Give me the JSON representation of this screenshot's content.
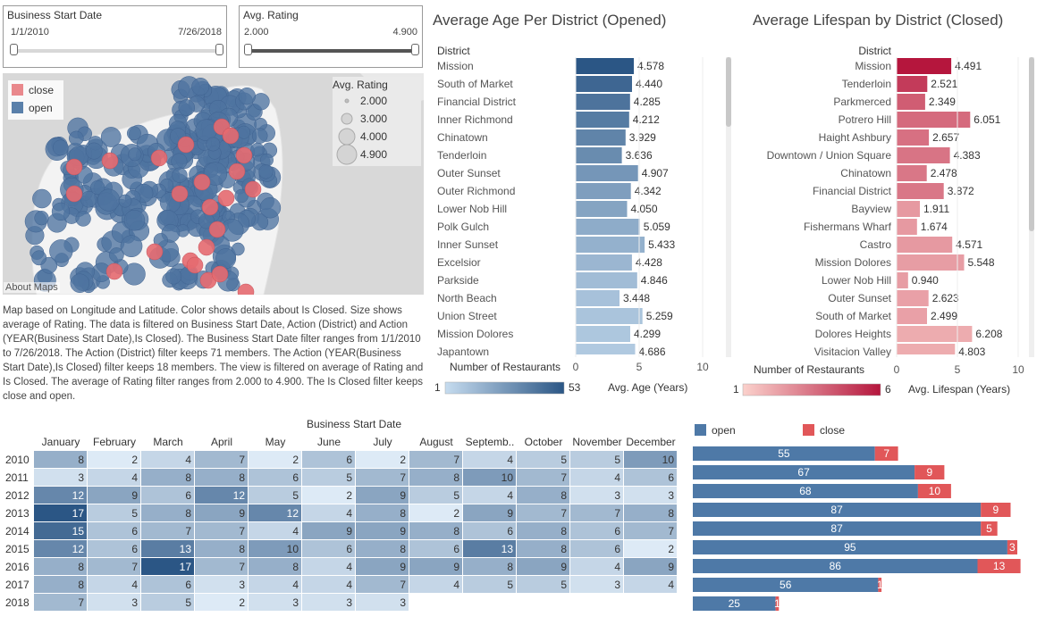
{
  "filters": {
    "start_date": {
      "title": "Business Start Date",
      "min": "1/1/2010",
      "max": "7/26/2018"
    },
    "rating": {
      "title": "Avg. Rating",
      "min": "2.000",
      "max": "4.900"
    }
  },
  "map": {
    "legend_color": [
      {
        "label": "close",
        "color": "#e9888c"
      },
      {
        "label": "open",
        "color": "#5a80aa"
      }
    ],
    "legend_size_title": "Avg. Rating",
    "legend_size": [
      "2.000",
      "3.000",
      "4.000",
      "4.900"
    ],
    "attribution": "About Maps",
    "description": "Map based on Longitude and Latitude.  Color shows details about Is Closed.  Size shows average of Rating. The data is filtered on Business Start Date, Action (District) and Action (YEAR(Business Start Date),Is Closed). The Business Start Date filter ranges from 1/1/2010 to 7/26/2018. The Action (District) filter keeps 71 members. The Action (YEAR(Business Start Date),Is Closed) filter keeps 18 members. The view is filtered on average of Rating and Is Closed. The average of Rating filter ranges from 2.000 to 4.900. The Is Closed filter keeps close and open."
  },
  "chart_data": [
    {
      "type": "bar",
      "title": "Average Age Per District (Opened)",
      "row_header": "District",
      "xlabel": "Avg. Age (Years)",
      "xlim": [
        0,
        10
      ],
      "x_ticks": [
        "0",
        "5",
        "10"
      ],
      "color_legend_title": "Number of Restaurants",
      "color_legend_range": [
        "1",
        "53"
      ],
      "colors": {
        "light": "#c6dcef",
        "dark": "#2b5685"
      },
      "categories": [
        "Mission",
        "South of Market",
        "Financial District",
        "Inner Richmond",
        "Chinatown",
        "Tenderloin",
        "Outer Sunset",
        "Outer Richmond",
        "Lower Nob Hill",
        "Polk Gulch",
        "Inner Sunset",
        "Excelsior",
        "Parkside",
        "North Beach",
        "Union Street",
        "Mission Dolores",
        "Japantown"
      ],
      "values": [
        4.578,
        4.44,
        4.285,
        4.212,
        3.929,
        3.636,
        4.907,
        4.342,
        4.05,
        5.059,
        5.433,
        4.428,
        4.846,
        3.448,
        5.259,
        4.299,
        4.686
      ],
      "value_labels": [
        "4.578",
        "4.440",
        "4.285",
        "4.212",
        "3.929",
        "3.636",
        "4.907",
        "4.342",
        "4.050",
        "5.059",
        "5.433",
        "4.428",
        "4.846",
        "3.448",
        "5.259",
        "4.299",
        "4.686"
      ],
      "shade": [
        1.0,
        0.88,
        0.78,
        0.72,
        0.66,
        0.6,
        0.52,
        0.46,
        0.42,
        0.36,
        0.32,
        0.28,
        0.24,
        0.2,
        0.18,
        0.16,
        0.14
      ]
    },
    {
      "type": "bar",
      "title": "Average Lifespan by District (Closed)",
      "row_header": "District",
      "xlabel": "Avg. Lifespan (Years)",
      "xlim": [
        0,
        10
      ],
      "x_ticks": [
        "0",
        "5",
        "10"
      ],
      "color_legend_title": "Number of Restaurants",
      "color_legend_range": [
        "1",
        "6"
      ],
      "colors": {
        "light": "#fbd1cc",
        "dark": "#b5163d"
      },
      "categories": [
        "Mission",
        "Tenderloin",
        "Parkmerced",
        "Potrero Hill",
        "Haight Ashbury",
        "Downtown / Union Square",
        "Chinatown",
        "Financial District",
        "Bayview",
        "Fishermans Wharf",
        "Castro",
        "Mission Dolores",
        "Lower Nob Hill",
        "Outer Sunset",
        "South of Market",
        "Dolores Heights",
        "Visitacion Valley"
      ],
      "values": [
        4.491,
        2.521,
        2.349,
        6.051,
        2.657,
        4.383,
        2.478,
        3.872,
        1.911,
        1.674,
        4.571,
        5.548,
        0.94,
        2.623,
        2.499,
        6.208,
        4.803
      ],
      "value_labels": [
        "4.491",
        "2.521",
        "2.349",
        "6.051",
        "2.657",
        "4.383",
        "2.478",
        "3.872",
        "1.911",
        "1.674",
        "4.571",
        "5.548",
        "0.940",
        "2.623",
        "2.499",
        "6.208",
        "4.803"
      ],
      "shade": [
        1.0,
        0.8,
        0.62,
        0.55,
        0.52,
        0.5,
        0.48,
        0.48,
        0.3,
        0.3,
        0.3,
        0.28,
        0.28,
        0.26,
        0.26,
        0.2,
        0.2
      ]
    },
    {
      "type": "heatmap",
      "title": "Business Start Date",
      "columns": [
        "January",
        "February",
        "March",
        "April",
        "May",
        "June",
        "July",
        "August",
        "Septemb..",
        "October",
        "November",
        "December"
      ],
      "rows": [
        "2010",
        "2011",
        "2012",
        "2013",
        "2014",
        "2015",
        "2016",
        "2017",
        "2018"
      ],
      "values": [
        [
          8,
          2,
          4,
          7,
          2,
          6,
          2,
          7,
          4,
          5,
          5,
          10
        ],
        [
          3,
          4,
          8,
          8,
          6,
          5,
          7,
          8,
          10,
          7,
          4,
          6
        ],
        [
          12,
          9,
          6,
          12,
          5,
          2,
          9,
          5,
          4,
          8,
          3,
          3
        ],
        [
          17,
          5,
          8,
          9,
          12,
          4,
          8,
          2,
          9,
          7,
          7,
          8
        ],
        [
          15,
          6,
          7,
          7,
          4,
          9,
          9,
          8,
          6,
          8,
          6,
          7
        ],
        [
          12,
          6,
          13,
          8,
          10,
          6,
          8,
          6,
          13,
          8,
          6,
          2
        ],
        [
          8,
          7,
          17,
          7,
          8,
          4,
          9,
          9,
          8,
          9,
          4,
          9
        ],
        [
          8,
          4,
          6,
          3,
          4,
          4,
          7,
          4,
          5,
          5,
          3,
          4
        ],
        [
          7,
          3,
          5,
          2,
          3,
          3,
          3,
          null,
          null,
          null,
          null,
          null
        ]
      ],
      "colors": {
        "light": "#ddeaf6",
        "dark": "#2b5685"
      }
    },
    {
      "type": "bar",
      "stacked": true,
      "orientation": "horizontal",
      "legend": [
        {
          "name": "open",
          "color": "#4e79a7"
        },
        {
          "name": "close",
          "color": "#e15759"
        }
      ],
      "categories": [
        "2010",
        "2011",
        "2012",
        "2013",
        "2014",
        "2015",
        "2016",
        "2017",
        "2018"
      ],
      "series": [
        {
          "name": "open",
          "values": [
            55,
            67,
            68,
            87,
            87,
            95,
            86,
            56,
            25
          ]
        },
        {
          "name": "close",
          "values": [
            7,
            9,
            10,
            9,
            5,
            3,
            13,
            1,
            1
          ]
        }
      ],
      "xlim": [
        0,
        108
      ]
    }
  ]
}
